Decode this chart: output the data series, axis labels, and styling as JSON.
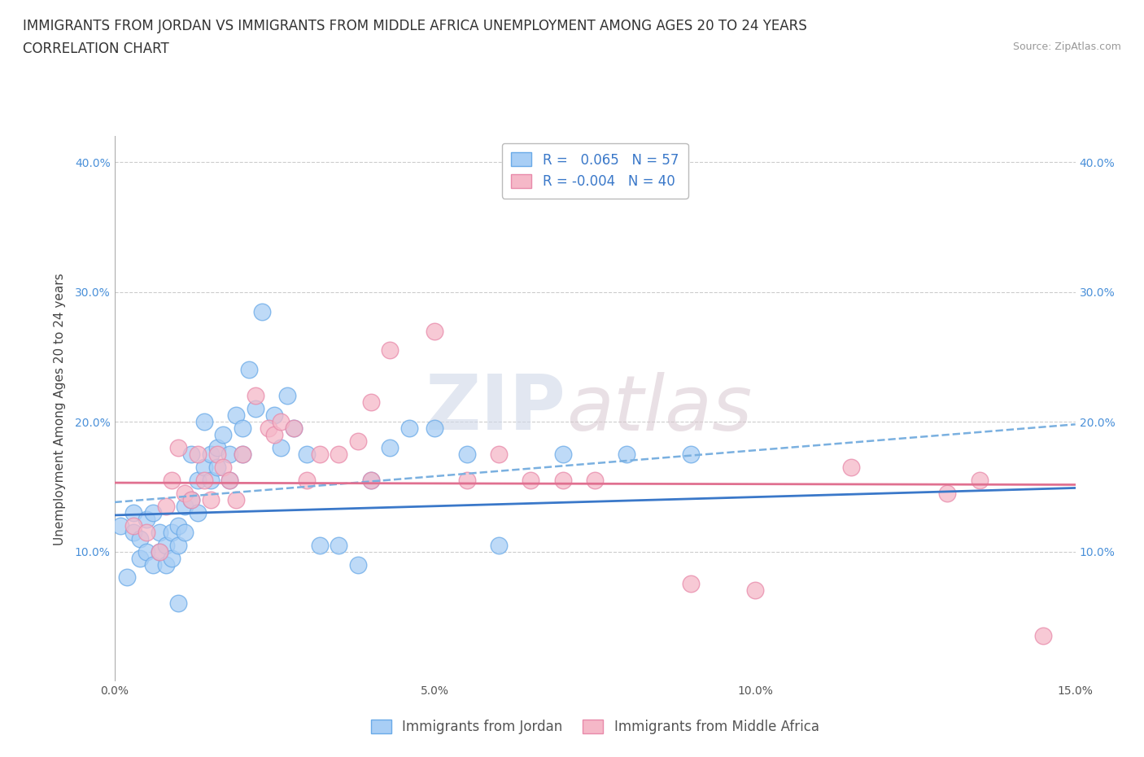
{
  "title_line1": "IMMIGRANTS FROM JORDAN VS IMMIGRANTS FROM MIDDLE AFRICA UNEMPLOYMENT AMONG AGES 20 TO 24 YEARS",
  "title_line2": "CORRELATION CHART",
  "source_text": "Source: ZipAtlas.com",
  "ylabel": "Unemployment Among Ages 20 to 24 years",
  "xlim": [
    0.0,
    0.15
  ],
  "ylim": [
    0.0,
    0.42
  ],
  "xticks": [
    0.0,
    0.05,
    0.1,
    0.15
  ],
  "xtick_labels": [
    "0.0%",
    "5.0%",
    "10.0%",
    "15.0%"
  ],
  "ytick_labels": [
    "",
    "10.0%",
    "20.0%",
    "30.0%",
    "40.0%"
  ],
  "yticks": [
    0.0,
    0.1,
    0.2,
    0.3,
    0.4
  ],
  "background_color": "#ffffff",
  "grid_color": "#cccccc",
  "jordan_color": "#a8cef5",
  "jordan_edge_color": "#6aaae8",
  "middle_africa_color": "#f5b8c8",
  "middle_africa_edge_color": "#e88aaa",
  "jordan_R": 0.065,
  "jordan_N": 57,
  "middle_africa_R": -0.004,
  "middle_africa_N": 40,
  "legend_label_jordan": "Immigrants from Jordan",
  "legend_label_middle_africa": "Immigrants from Middle Africa",
  "watermark_zip": "ZIP",
  "watermark_atlas": "atlas",
  "jordan_line_color": "#3a78c9",
  "jordan_dash_color": "#7ab0e0",
  "middle_africa_line_color": "#e07090",
  "title_fontsize": 12,
  "subtitle_fontsize": 12,
  "axis_label_fontsize": 11,
  "tick_fontsize": 10,
  "legend_fontsize": 12,
  "source_fontsize": 9,
  "jordan_scatter_x": [
    0.001,
    0.002,
    0.003,
    0.003,
    0.004,
    0.004,
    0.005,
    0.005,
    0.006,
    0.006,
    0.007,
    0.007,
    0.008,
    0.008,
    0.009,
    0.009,
    0.01,
    0.01,
    0.011,
    0.011,
    0.012,
    0.012,
    0.013,
    0.013,
    0.014,
    0.014,
    0.015,
    0.015,
    0.016,
    0.016,
    0.017,
    0.018,
    0.018,
    0.019,
    0.02,
    0.02,
    0.021,
    0.022,
    0.023,
    0.025,
    0.026,
    0.027,
    0.028,
    0.03,
    0.032,
    0.035,
    0.038,
    0.04,
    0.043,
    0.046,
    0.05,
    0.055,
    0.06,
    0.07,
    0.08,
    0.09,
    0.01
  ],
  "jordan_scatter_y": [
    0.12,
    0.08,
    0.13,
    0.115,
    0.11,
    0.095,
    0.125,
    0.1,
    0.09,
    0.13,
    0.115,
    0.1,
    0.105,
    0.09,
    0.095,
    0.115,
    0.105,
    0.12,
    0.115,
    0.135,
    0.175,
    0.14,
    0.13,
    0.155,
    0.165,
    0.2,
    0.175,
    0.155,
    0.18,
    0.165,
    0.19,
    0.155,
    0.175,
    0.205,
    0.195,
    0.175,
    0.24,
    0.21,
    0.285,
    0.205,
    0.18,
    0.22,
    0.195,
    0.175,
    0.105,
    0.105,
    0.09,
    0.155,
    0.18,
    0.195,
    0.195,
    0.175,
    0.105,
    0.175,
    0.175,
    0.175,
    0.06
  ],
  "middle_africa_scatter_x": [
    0.003,
    0.005,
    0.007,
    0.008,
    0.009,
    0.01,
    0.011,
    0.012,
    0.013,
    0.014,
    0.015,
    0.016,
    0.017,
    0.018,
    0.019,
    0.02,
    0.022,
    0.024,
    0.025,
    0.026,
    0.028,
    0.03,
    0.032,
    0.035,
    0.038,
    0.04,
    0.04,
    0.043,
    0.05,
    0.055,
    0.06,
    0.065,
    0.07,
    0.075,
    0.09,
    0.1,
    0.115,
    0.13,
    0.135,
    0.145
  ],
  "middle_africa_scatter_y": [
    0.12,
    0.115,
    0.1,
    0.135,
    0.155,
    0.18,
    0.145,
    0.14,
    0.175,
    0.155,
    0.14,
    0.175,
    0.165,
    0.155,
    0.14,
    0.175,
    0.22,
    0.195,
    0.19,
    0.2,
    0.195,
    0.155,
    0.175,
    0.175,
    0.185,
    0.155,
    0.215,
    0.255,
    0.27,
    0.155,
    0.175,
    0.155,
    0.155,
    0.155,
    0.075,
    0.07,
    0.165,
    0.145,
    0.155,
    0.035
  ]
}
